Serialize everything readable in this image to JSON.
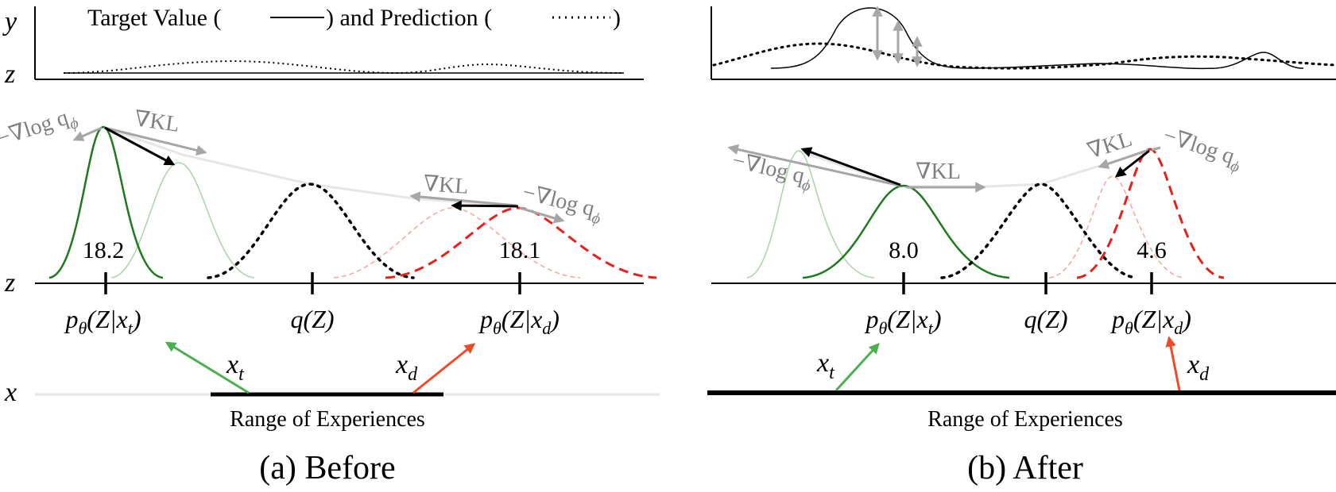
{
  "legend": {
    "text_a": "Target Value (",
    "text_b": ") and Prediction (",
    "text_c": ")"
  },
  "axes": {
    "y": "y",
    "z": "z",
    "x": "x"
  },
  "panels": {
    "before": {
      "caption": "(a) Before",
      "range_label": "Range of Experiences",
      "values": {
        "pt": "18.2",
        "pd": "18.1"
      },
      "labels": {
        "pt_main": "p",
        "pt_sub": "θ",
        "pt_arg": "(Z|x",
        "pt_argsub": "t",
        "pt_close": ")",
        "q": "q(Z)",
        "pd_main": "p",
        "pd_sub": "θ",
        "pd_arg": "(Z|x",
        "pd_argsub": "d",
        "pd_close": ")"
      },
      "grads": {
        "neg_log_1": "−∇log q",
        "phi_1": "ϕ",
        "kl_1": "∇KL",
        "kl_2": "∇KL",
        "neg_log_2": "−∇log q",
        "phi_2": "ϕ"
      },
      "inputs": {
        "xt": "x",
        "xt_sub": "t",
        "xd": "x",
        "xd_sub": "d"
      }
    },
    "after": {
      "caption": "(b) After",
      "range_label": "Range of Experiences",
      "values": {
        "pt": "8.0",
        "pd": "4.6"
      },
      "labels": {
        "pt_main": "p",
        "pt_sub": "θ",
        "pt_arg": "(Z|x",
        "pt_argsub": "t",
        "pt_close": ")",
        "q": "q(Z)",
        "pd_main": "p",
        "pd_sub": "θ",
        "pd_arg": "(Z|x",
        "pd_argsub": "d",
        "pd_close": ")"
      },
      "grads": {
        "neg_log_1": "−∇log q",
        "phi_1": "ϕ",
        "kl_1": "∇KL",
        "kl_2": "∇KL",
        "neg_log_2": "−∇log q",
        "phi_2": "ϕ"
      },
      "inputs": {
        "xt": "x",
        "xt_sub": "t",
        "xd": "x",
        "xd_sub": "d"
      }
    }
  },
  "colors": {
    "black": "#000000",
    "grey_arrow": "#a6a6a6",
    "light_grey": "#e0e0e0",
    "green": "#1e7a1e",
    "green_light": "#a9d4a9",
    "green_arrow": "#4caf50",
    "red": "#e8201a",
    "red_light": "#f4a5a0",
    "red_arrow": "#f04a2a"
  }
}
